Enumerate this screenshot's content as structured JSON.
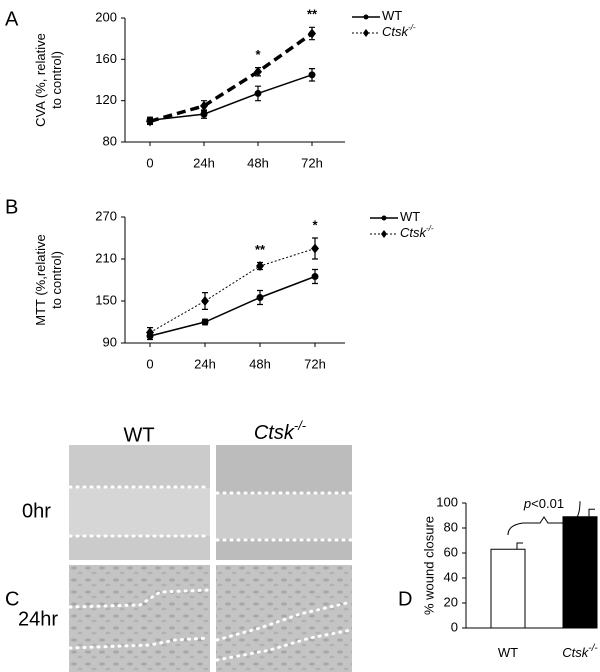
{
  "chart_data": [
    {
      "type": "line",
      "panel": "A",
      "y_label": [
        "CVA (%, relative",
        "to control)"
      ],
      "categories": [
        "0",
        "24h",
        "48h",
        "72h"
      ],
      "ylim": [
        80,
        200
      ],
      "yticks": [
        80,
        120,
        160,
        200
      ],
      "series": [
        {
          "name": "WT",
          "color": "#000000",
          "style": "solid",
          "values": [
            101,
            107,
            127,
            145
          ],
          "errors": [
            3,
            4,
            7,
            6
          ]
        },
        {
          "name": "Ctsk",
          "name_sup": "-/-",
          "color": "#000000",
          "style": "dashed",
          "values": [
            100,
            115,
            148,
            185
          ],
          "errors": [
            3,
            5,
            4,
            6
          ]
        }
      ],
      "annotations": [
        {
          "text": "*",
          "x": "48h"
        },
        {
          "text": "**",
          "x": "72h"
        }
      ]
    },
    {
      "type": "line",
      "panel": "B",
      "y_label": [
        "MTT (%,relative",
        "to control)"
      ],
      "categories": [
        "0",
        "24h",
        "48h",
        "72h"
      ],
      "ylim": [
        90,
        270
      ],
      "yticks": [
        90,
        150,
        210,
        270
      ],
      "series": [
        {
          "name": "WT",
          "color": "#000000",
          "style": "solid",
          "values": [
            100,
            120,
            155,
            185
          ],
          "errors": [
            5,
            4,
            10,
            10
          ]
        },
        {
          "name": "Ctsk",
          "name_sup": "-/-",
          "color": "#000000",
          "style": "dotted",
          "values": [
            105,
            150,
            200,
            225
          ],
          "errors": [
            7,
            12,
            5,
            15
          ]
        }
      ],
      "annotations": [
        {
          "text": "**",
          "x": "48h"
        },
        {
          "text": "*",
          "x": "72h"
        }
      ]
    },
    {
      "type": "bar",
      "panel": "D",
      "y_label": "% wound closure",
      "categories": [
        "WT",
        "Ctsk"
      ],
      "category_sup": [
        null,
        "-/-"
      ],
      "values": [
        63,
        89
      ],
      "errors": [
        5,
        6
      ],
      "colors": [
        "#ffffff",
        "#000000"
      ],
      "ylim": [
        0,
        100
      ],
      "yticks": [
        0,
        20,
        40,
        60,
        80,
        100
      ],
      "annotation": {
        "italic": "p",
        "text": "<0.01"
      }
    }
  ],
  "images": {
    "panel": "C",
    "columns": [
      "WT",
      "Ctsk"
    ],
    "column_sup": [
      null,
      "-/-"
    ],
    "rows": [
      "0hr",
      "24hr"
    ]
  }
}
